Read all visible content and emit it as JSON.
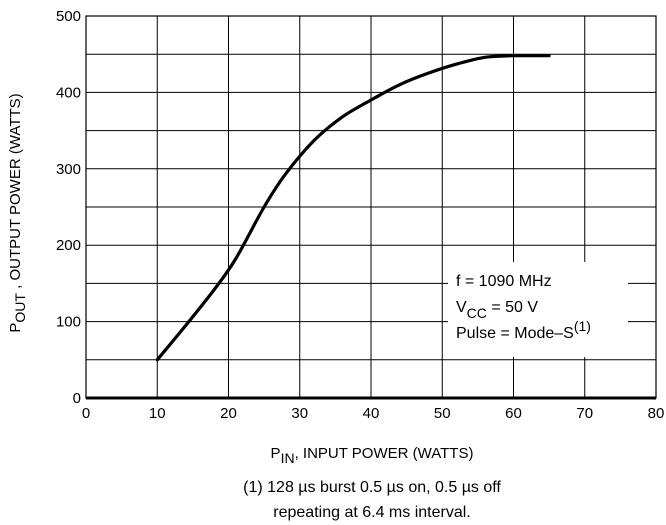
{
  "chart_data": {
    "type": "line",
    "xlabel": {
      "main": "P",
      "sub": "IN",
      "rest": ", INPUT POWER (WATTS)"
    },
    "ylabel": {
      "main": "P",
      "sub": "OUT",
      "rest": " , OUTPUT POWER (WATTS)"
    },
    "xlim": [
      0,
      80
    ],
    "ylim": [
      0,
      500
    ],
    "x_ticks": [
      0,
      10,
      20,
      30,
      40,
      50,
      60,
      70,
      80
    ],
    "y_ticks": [
      0,
      100,
      200,
      300,
      400,
      500
    ],
    "grid": true,
    "x": [
      10,
      14,
      18,
      21,
      25,
      28,
      32,
      36,
      40,
      44,
      48,
      52,
      56,
      60,
      65
    ],
    "series": [
      {
        "values": [
          50,
          95,
          142,
          182,
          250,
          293,
          337,
          368,
          390,
          410,
          425,
          437,
          446,
          448,
          448
        ]
      }
    ],
    "annotation": {
      "line1": "f = 1090 MHz",
      "line2_main": "V",
      "line2_sub": "CC",
      "line2_rest": " = 50 V",
      "line3_main": "Pulse = Mode–S",
      "line3_sup": "(1)"
    },
    "footnote": {
      "line1": "(1) 128 µs burst 0.5 µs on, 0.5 µs off",
      "line2": "repeating at 6.4 ms interval."
    }
  }
}
